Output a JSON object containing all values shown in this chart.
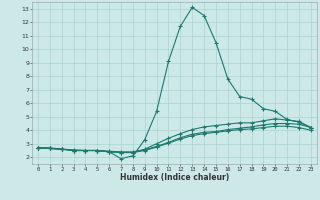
{
  "xlabel": "Humidex (Indice chaleur)",
  "bg_color": "#cce9e7",
  "grid_color": "#aad4d0",
  "line_color": "#1a7a6e",
  "xlim": [
    -0.5,
    23.5
  ],
  "ylim": [
    1.5,
    13.5
  ],
  "xticks": [
    0,
    1,
    2,
    3,
    4,
    5,
    6,
    7,
    8,
    9,
    10,
    11,
    12,
    13,
    14,
    15,
    16,
    17,
    18,
    19,
    20,
    21,
    22,
    23
  ],
  "yticks": [
    2,
    3,
    4,
    5,
    6,
    7,
    8,
    9,
    10,
    11,
    12,
    13
  ],
  "curve1_x": [
    0,
    1,
    2,
    3,
    4,
    5,
    6,
    7,
    8,
    9,
    10,
    11,
    12,
    13,
    14,
    15,
    16,
    17,
    18,
    19,
    20,
    21,
    22,
    23
  ],
  "curve1_y": [
    2.7,
    2.7,
    2.6,
    2.5,
    2.5,
    2.5,
    2.4,
    1.9,
    2.1,
    3.3,
    5.4,
    9.1,
    11.7,
    13.1,
    12.5,
    10.5,
    7.8,
    6.5,
    6.3,
    5.6,
    5.4,
    4.8,
    4.6,
    4.2
  ],
  "curve2_x": [
    0,
    1,
    2,
    3,
    4,
    5,
    6,
    7,
    8,
    9,
    10,
    11,
    12,
    13,
    14,
    15,
    16,
    17,
    18,
    19,
    20,
    21,
    22,
    23
  ],
  "curve2_y": [
    2.7,
    2.65,
    2.6,
    2.55,
    2.5,
    2.5,
    2.45,
    2.4,
    2.4,
    2.55,
    2.8,
    3.1,
    3.45,
    3.7,
    3.85,
    3.9,
    4.05,
    4.15,
    4.25,
    4.4,
    4.5,
    4.5,
    4.45,
    4.2
  ],
  "curve3_x": [
    0,
    1,
    2,
    3,
    4,
    5,
    6,
    7,
    8,
    9,
    10,
    11,
    12,
    13,
    14,
    15,
    16,
    17,
    18,
    19,
    20,
    21,
    22,
    23
  ],
  "curve3_y": [
    2.7,
    2.65,
    2.6,
    2.5,
    2.5,
    2.5,
    2.4,
    2.35,
    2.35,
    2.6,
    3.0,
    3.4,
    3.75,
    4.05,
    4.25,
    4.35,
    4.45,
    4.55,
    4.55,
    4.7,
    4.85,
    4.75,
    4.65,
    4.2
  ],
  "curve4_x": [
    0,
    1,
    2,
    3,
    4,
    5,
    6,
    7,
    8,
    9,
    10,
    11,
    12,
    13,
    14,
    15,
    16,
    17,
    18,
    19,
    20,
    21,
    22,
    23
  ],
  "curve4_y": [
    2.7,
    2.65,
    2.6,
    2.5,
    2.5,
    2.5,
    2.4,
    2.35,
    2.35,
    2.5,
    2.75,
    3.05,
    3.35,
    3.6,
    3.75,
    3.85,
    3.95,
    4.05,
    4.1,
    4.2,
    4.3,
    4.3,
    4.2,
    4.0
  ]
}
